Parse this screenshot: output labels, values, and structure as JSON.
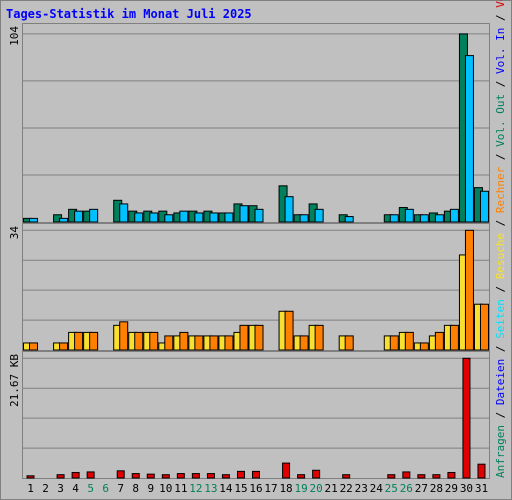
{
  "title": "Tages-Statistik im Monat Juli 2025",
  "colors": {
    "background": "#c0c0c0",
    "border": "#808080",
    "title": "#0000ff",
    "grid": "#808080",
    "anfragen": "#00805c",
    "dateien": "#00c0ff",
    "seiten": "#00e0ff",
    "besuche": "#f8e030",
    "rechner": "#ff8000",
    "volumen": "#e00000",
    "label_blue": "#0000ff",
    "label_teal": "#00805c"
  },
  "legend": {
    "top": [
      {
        "text": "Anfragen",
        "color": "#00805c"
      },
      {
        "text": "/",
        "color": "#000000"
      },
      {
        "text": "Dateien",
        "color": "#0000ff"
      },
      {
        "text": "/",
        "color": "#000000"
      },
      {
        "text": "Seiten",
        "color": "#00e0ff"
      },
      {
        "text": "/",
        "color": "#000000"
      },
      {
        "text": "Besuche",
        "color": "#f8e030"
      },
      {
        "text": "/",
        "color": "#000000"
      },
      {
        "text": "Rechner",
        "color": "#ff8000"
      },
      {
        "text": "/",
        "color": "#000000"
      },
      {
        "text": "Vol. Out",
        "color": "#00805c"
      },
      {
        "text": "/",
        "color": "#000000"
      },
      {
        "text": "Vol. In",
        "color": "#0000ff"
      },
      {
        "text": "/",
        "color": "#000000"
      },
      {
        "text": "Volumen",
        "color": "#e00000"
      }
    ]
  },
  "chart_data": {
    "type": "bar",
    "title": "Tages-Statistik im Monat Juli 2025",
    "categories": [
      "1",
      "2",
      "3",
      "4",
      "5",
      "6",
      "7",
      "8",
      "9",
      "10",
      "11",
      "12",
      "13",
      "14",
      "15",
      "16",
      "17",
      "18",
      "19",
      "20",
      "21",
      "22",
      "23",
      "24",
      "25",
      "26",
      "27",
      "28",
      "29",
      "30",
      "31"
    ],
    "category_colors": [
      "#000000",
      "#000000",
      "#000000",
      "#000000",
      "#00805c",
      "#00805c",
      "#000000",
      "#000000",
      "#000000",
      "#000000",
      "#000000",
      "#00805c",
      "#00805c",
      "#000000",
      "#000000",
      "#000000",
      "#000000",
      "#000000",
      "#00805c",
      "#00805c",
      "#000000",
      "#000000",
      "#000000",
      "#000000",
      "#00805c",
      "#00805c",
      "#000000",
      "#000000",
      "#000000",
      "#000000",
      "#000000"
    ],
    "panels": [
      {
        "name": "hits",
        "ymax": 104,
        "ymax_label": "104",
        "series": [
          {
            "name": "Anfragen",
            "color": "#00805c",
            "values": [
              2,
              0,
              4,
              7,
              6,
              0,
              12,
              6,
              6,
              6,
              5,
              6,
              6,
              5,
              10,
              9,
              0,
              20,
              4,
              10,
              0,
              4,
              0,
              0,
              4,
              8,
              4,
              5,
              6,
              104,
              19
            ]
          },
          {
            "name": "Dateien",
            "color": "#00c0ff",
            "values": [
              2,
              0,
              2,
              6,
              7,
              0,
              10,
              5,
              5,
              4,
              6,
              5,
              5,
              5,
              9,
              7,
              0,
              14,
              4,
              7,
              0,
              3,
              0,
              0,
              4,
              7,
              4,
              4,
              7,
              92,
              17
            ]
          }
        ]
      },
      {
        "name": "visits",
        "ymax": 34,
        "ymax_label": "34",
        "series": [
          {
            "name": "Besuche",
            "color": "#f8e030",
            "values": [
              2,
              0,
              2,
              5,
              5,
              0,
              7,
              5,
              5,
              2,
              4,
              4,
              4,
              4,
              5,
              7,
              0,
              11,
              4,
              7,
              0,
              4,
              0,
              0,
              4,
              5,
              2,
              4,
              7,
              27,
              13
            ]
          },
          {
            "name": "Rechner",
            "color": "#ff8000",
            "values": [
              2,
              0,
              2,
              5,
              5,
              0,
              8,
              5,
              5,
              4,
              5,
              4,
              4,
              4,
              7,
              7,
              0,
              11,
              4,
              7,
              0,
              4,
              0,
              0,
              4,
              5,
              2,
              5,
              7,
              34,
              13
            ]
          }
        ]
      },
      {
        "name": "volume",
        "ymax": 21.67,
        "ymax_label": "21.67 KB",
        "series": [
          {
            "name": "Volumen",
            "color": "#e00000",
            "values": [
              0.4,
              0,
              0.6,
              1.0,
              1.1,
              0,
              1.3,
              0.8,
              0.7,
              0.6,
              0.8,
              0.8,
              0.8,
              0.6,
              1.2,
              1.2,
              0,
              2.7,
              0.6,
              1.4,
              0,
              0.6,
              0,
              0,
              0.6,
              1.1,
              0.6,
              0.6,
              1.0,
              21.67,
              2.5
            ]
          }
        ]
      }
    ]
  }
}
